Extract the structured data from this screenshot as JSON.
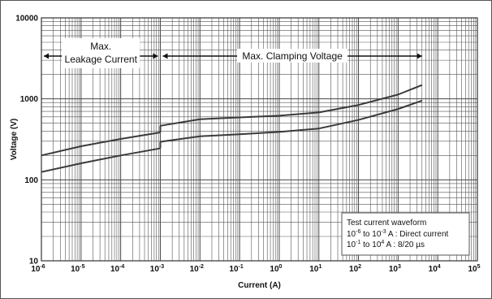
{
  "chart_data": {
    "type": "line",
    "title": "",
    "xlabel": "Current (A)",
    "ylabel": "Voltage (V)",
    "xscale": "log",
    "yscale": "log",
    "xlim": [
      1e-06,
      100000.0
    ],
    "ylim": [
      10,
      10000
    ],
    "grid": true,
    "x_tick_labels": [
      {
        "base": "10",
        "exp": "-6"
      },
      {
        "base": "10",
        "exp": "-5"
      },
      {
        "base": "10",
        "exp": "-4"
      },
      {
        "base": "10",
        "exp": "-3"
      },
      {
        "base": "10",
        "exp": "-2"
      },
      {
        "base": "10",
        "exp": "-1"
      },
      {
        "base": "10",
        "exp": "0"
      },
      {
        "base": "10",
        "exp": "1"
      },
      {
        "base": "10",
        "exp": "2"
      },
      {
        "base": "10",
        "exp": "3"
      },
      {
        "base": "10",
        "exp": "4"
      },
      {
        "base": "10",
        "exp": "5"
      }
    ],
    "y_tick_labels": [
      "10",
      "100",
      "1000",
      "10000"
    ],
    "series": [
      {
        "segments": [
          {
            "x": [
              1e-06,
              1e-05,
              0.0001,
              0.001
            ],
            "y": [
              200,
              260,
              320,
              385
            ]
          },
          {
            "x": [
              0.001,
              0.01,
              0.1,
              1,
              10,
              100,
              1000,
              4000
            ],
            "y": [
              465,
              560,
              590,
              620,
              680,
              840,
              1130,
              1480
            ]
          }
        ]
      },
      {
        "segments": [
          {
            "x": [
              1e-06,
              1e-05,
              0.0001,
              0.001
            ],
            "y": [
              125,
              160,
              200,
              245
            ]
          },
          {
            "x": [
              0.001,
              0.01,
              0.1,
              1,
              10,
              100,
              1000,
              4000
            ],
            "y": [
              295,
              345,
              365,
              390,
              430,
              550,
              750,
              950
            ]
          }
        ]
      }
    ],
    "annotations": {
      "region_leakage": {
        "line1": "Max.",
        "line2": "Leakage Current",
        "x_start": 1e-06,
        "x_end": 0.001
      },
      "region_clamping": {
        "label": "Max. Clamping Voltage",
        "x_start": 0.001,
        "x_end": 4000
      },
      "legend_box": {
        "title": "Test current waveform",
        "line1": {
          "a_base": "10",
          "a_exp": "-6",
          "mid": "  to 10",
          "b_exp": "-3",
          "rest": " A : Direct current"
        },
        "line2": {
          "a_base": "10",
          "a_exp": "-1",
          "mid": "  to 10",
          "b_exp": "4",
          "rest": "  A : 8/20 µs"
        }
      }
    }
  }
}
